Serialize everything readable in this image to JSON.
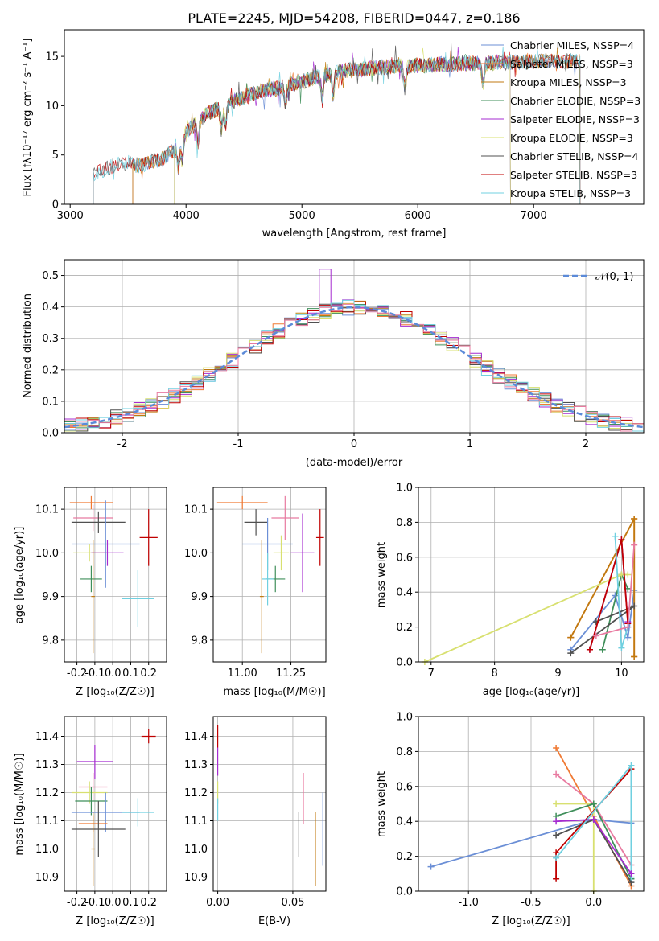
{
  "figure_title": "PLATE=2245, MJD=54208, FIBERID=0447, z=0.186",
  "colors": {
    "chabrier_miles": "#6b8fd6",
    "salpeter_miles": "#f07a34",
    "kroupa_miles": "#c07a10",
    "chabrier_elodie": "#3f8f5a",
    "salpeter_elodie": "#a52bd0",
    "kroupa_elodie": "#d8e070",
    "chabrier_stelib": "#505050",
    "salpeter_stelib": "#c00000",
    "kroupa_stelib": "#70d0e0",
    "extra_pink": "#e87aa0",
    "gaussian": "#5b8ad8",
    "grid": "#b0b0b0"
  },
  "chart_data": [
    {
      "id": "spectrum",
      "type": "line",
      "xlabel": "wavelength [Angstrom, rest frame]",
      "ylabel": "Flux [fλ10⁻¹⁷ erg cm⁻² s⁻¹ A⁻¹]",
      "xlim": [
        2950,
        7950
      ],
      "ylim": [
        0,
        17.7
      ],
      "xticks": [
        3000,
        4000,
        5000,
        6000,
        7000
      ],
      "yticks": [
        0,
        5,
        10,
        15
      ],
      "grid": false,
      "legend_position": "top-right",
      "series": [
        {
          "name": "Chabrier MILES, NSSP=4",
          "color": "#6b8fd6",
          "x_range": [
            3540,
            7400
          ]
        },
        {
          "name": "Salpeter MILES, NSSP=3",
          "color": "#f07a34",
          "x_range": [
            3540,
            7400
          ]
        },
        {
          "name": "Kroupa MILES, NSSP=3",
          "color": "#c07a10",
          "x_range": [
            3540,
            7400
          ]
        },
        {
          "name": "Chabrier ELODIE, NSSP=3",
          "color": "#3f8f5a",
          "x_range": [
            3900,
            6800
          ]
        },
        {
          "name": "Salpeter ELODIE, NSSP=3",
          "color": "#a52bd0",
          "x_range": [
            3900,
            6800
          ]
        },
        {
          "name": "Kroupa ELODIE, NSSP=3",
          "color": "#d8e070",
          "x_range": [
            3900,
            6800
          ]
        },
        {
          "name": "Chabrier STELIB, NSSP=4",
          "color": "#505050",
          "x_range": [
            3200,
            7400
          ]
        },
        {
          "name": "Salpeter STELIB, NSSP=3",
          "color": "#c00000",
          "x_range": [
            3200,
            7400
          ]
        },
        {
          "name": "Kroupa STELIB, NSSP=3",
          "color": "#70d0e0",
          "x_range": [
            3200,
            7400
          ]
        }
      ],
      "continuum": {
        "x": [
          3200,
          3300,
          3400,
          3500,
          3600,
          3700,
          3800,
          3900,
          3950,
          4000,
          4100,
          4200,
          4300,
          4400,
          4500,
          4600,
          4700,
          4800,
          4900,
          5000,
          5100,
          5200,
          5300,
          5400,
          5500,
          5600,
          5700,
          5800,
          5900,
          6000,
          6100,
          6200,
          6300,
          6400,
          6500,
          6600,
          6700,
          6800,
          6900,
          7000,
          7100,
          7200,
          7300,
          7400
        ],
        "y": [
          3.0,
          3.6,
          4.0,
          4.2,
          3.9,
          4.3,
          4.6,
          5.5,
          6.2,
          7.3,
          8.4,
          9.3,
          9.8,
          10.4,
          10.9,
          11.3,
          11.6,
          11.8,
          12.1,
          12.4,
          12.8,
          13.1,
          13.4,
          13.6,
          13.7,
          13.8,
          13.9,
          14.0,
          14.0,
          14.1,
          14.1,
          14.2,
          14.2,
          14.3,
          14.3,
          14.3,
          14.4,
          14.4,
          14.4,
          14.5,
          14.5,
          14.5,
          14.5,
          14.5
        ]
      }
    },
    {
      "id": "residuals",
      "type": "histogram",
      "xlabel": "(data-model)/error",
      "ylabel": "Normed distribution",
      "xlim": [
        -2.5,
        2.5
      ],
      "ylim": [
        0,
        0.55
      ],
      "xticks": [
        -2,
        -1,
        0,
        1,
        2
      ],
      "yticks": [
        0.0,
        0.1,
        0.2,
        0.3,
        0.4,
        0.5
      ],
      "grid": true,
      "legend_position": "top-right",
      "gaussian_label": "𝒩(0, 1)",
      "bin_width": 0.1
    },
    {
      "id": "age_vs_Z",
      "type": "errorbar",
      "xlabel": "Z [log₁₀(Z/Z☉)]",
      "ylabel": "age  [log₁₀(age/yr)]",
      "xlim": [
        -0.27,
        0.3
      ],
      "ylim": [
        9.75,
        10.15
      ],
      "xticks": [
        -0.2,
        -0.1,
        0.0,
        0.1,
        0.2
      ],
      "yticks": [
        9.8,
        9.9,
        10.0,
        10.1
      ],
      "grid": true,
      "points": [
        {
          "color": "#f07a34",
          "x": -0.12,
          "xerr": 0.12,
          "y": 10.115,
          "yerr": 0.015
        },
        {
          "color": "#e87aa0",
          "x": -0.11,
          "xerr": 0.11,
          "y": 10.08,
          "yerr": 0.03
        },
        {
          "color": "#505050",
          "x": -0.08,
          "xerr": 0.15,
          "y": 10.07,
          "yerr": 0.025
        },
        {
          "color": "#6b8fd6",
          "x": -0.04,
          "xerr": 0.19,
          "y": 10.02,
          "yerr": 0.1
        },
        {
          "color": "#d8e070",
          "x": -0.13,
          "xerr": 0.09,
          "y": 10.0,
          "yerr": 0.02
        },
        {
          "color": "#a52bd0",
          "x": -0.03,
          "xerr": 0.09,
          "y": 10.0,
          "yerr": 0.03
        },
        {
          "color": "#c00000",
          "x": 0.2,
          "xerr": 0.05,
          "y": 10.035,
          "yerr": 0.065
        },
        {
          "color": "#3f8f5a",
          "x": -0.12,
          "xerr": 0.06,
          "y": 9.94,
          "yerr": 0.03
        },
        {
          "color": "#70d0e0",
          "x": 0.14,
          "xerr": 0.09,
          "y": 9.895,
          "yerr": 0.065
        },
        {
          "color": "#c07a10",
          "x": -0.11,
          "xerr": 0.01,
          "y": 9.9,
          "yerr": 0.13
        }
      ]
    },
    {
      "id": "age_vs_mass",
      "type": "errorbar",
      "xlabel": "mass [log₁₀(M/M☉)]",
      "ylabel": "",
      "xlim": [
        10.85,
        11.43
      ],
      "ylim": [
        9.75,
        10.15
      ],
      "xticks": [
        11.0,
        11.25
      ],
      "yticks": [
        9.8,
        9.9,
        10.0,
        10.1
      ],
      "grid": true,
      "points": [
        {
          "color": "#f07a34",
          "x": 11.0,
          "xerr": 0.13,
          "y": 10.115,
          "yerr": 0.015
        },
        {
          "color": "#e87aa0",
          "x": 11.22,
          "xerr": 0.07,
          "y": 10.08,
          "yerr": 0.05
        },
        {
          "color": "#505050",
          "x": 11.07,
          "xerr": 0.06,
          "y": 10.07,
          "yerr": 0.03
        },
        {
          "color": "#6b8fd6",
          "x": 11.13,
          "xerr": 0.13,
          "y": 10.02,
          "yerr": 0.06
        },
        {
          "color": "#d8e070",
          "x": 11.2,
          "xerr": 0.04,
          "y": 10.0,
          "yerr": 0.04
        },
        {
          "color": "#a52bd0",
          "x": 11.31,
          "xerr": 0.06,
          "y": 10.0,
          "yerr": 0.09
        },
        {
          "color": "#c00000",
          "x": 11.4,
          "xerr": 0.02,
          "y": 10.035,
          "yerr": 0.065
        },
        {
          "color": "#3f8f5a",
          "x": 11.17,
          "xerr": 0.05,
          "y": 9.94,
          "yerr": 0.03
        },
        {
          "color": "#70d0e0",
          "x": 11.13,
          "xerr": 0.03,
          "y": 9.94,
          "yerr": 0.06
        },
        {
          "color": "#c07a10",
          "x": 11.1,
          "xerr": 0.01,
          "y": 9.9,
          "yerr": 0.13
        }
      ]
    },
    {
      "id": "mass_vs_Z",
      "type": "errorbar",
      "xlabel": "Z [log₁₀(Z/Z☉)]",
      "ylabel": "mass [log₁₀(M/M☉)]",
      "xlim": [
        -0.27,
        0.3
      ],
      "ylim": [
        10.85,
        11.47
      ],
      "xticks": [
        -0.2,
        -0.1,
        0.0,
        0.1,
        0.2
      ],
      "yticks": [
        10.9,
        11.0,
        11.1,
        11.2,
        11.3,
        11.4
      ],
      "grid": true,
      "points": [
        {
          "color": "#c00000",
          "x": 0.2,
          "xerr": 0.04,
          "y": 11.4,
          "yerr": 0.025
        },
        {
          "color": "#a52bd0",
          "x": -0.1,
          "xerr": 0.1,
          "y": 11.31,
          "yerr": 0.06
        },
        {
          "color": "#e87aa0",
          "x": -0.11,
          "xerr": 0.08,
          "y": 11.22,
          "yerr": 0.05
        },
        {
          "color": "#d8e070",
          "x": -0.13,
          "xerr": 0.1,
          "y": 11.2,
          "yerr": 0.04
        },
        {
          "color": "#3f8f5a",
          "x": -0.12,
          "xerr": 0.09,
          "y": 11.17,
          "yerr": 0.05
        },
        {
          "color": "#6b8fd6",
          "x": -0.04,
          "xerr": 0.19,
          "y": 11.13,
          "yerr": 0.07
        },
        {
          "color": "#70d0e0",
          "x": 0.14,
          "xerr": 0.09,
          "y": 11.13,
          "yerr": 0.05
        },
        {
          "color": "#f07a34",
          "x": -0.11,
          "xerr": 0.08,
          "y": 11.09,
          "yerr": 0.03
        },
        {
          "color": "#505050",
          "x": -0.08,
          "xerr": 0.15,
          "y": 11.07,
          "yerr": 0.1
        },
        {
          "color": "#c07a10",
          "x": -0.11,
          "xerr": 0.01,
          "y": 11.0,
          "yerr": 0.13
        }
      ]
    },
    {
      "id": "mass_vs_ebv",
      "type": "errorbar",
      "xlabel": "E(B-V)",
      "ylabel": "",
      "xlim": [
        -0.003,
        0.072
      ],
      "ylim": [
        10.85,
        11.47
      ],
      "xticks": [
        0.0,
        0.05
      ],
      "yticks": [
        10.9,
        11.0,
        11.1,
        11.2,
        11.3,
        11.4
      ],
      "grid": true,
      "points": [
        {
          "color": "#c00000",
          "x": 0.0,
          "xerr": 0.0,
          "y": 11.4,
          "yerr": 0.04
        },
        {
          "color": "#a52bd0",
          "x": 0.0,
          "xerr": 0.0,
          "y": 11.31,
          "yerr": 0.05
        },
        {
          "color": "#d8e070",
          "x": 0.0,
          "xerr": 0.0,
          "y": 11.2,
          "yerr": 0.04
        },
        {
          "color": "#70d0e0",
          "x": 0.0,
          "xerr": 0.0,
          "y": 11.14,
          "yerr": 0.04
        },
        {
          "color": "#e87aa0",
          "x": 0.057,
          "xerr": 0.0,
          "y": 11.18,
          "yerr": 0.09
        },
        {
          "color": "#505050",
          "x": 0.054,
          "xerr": 0.0,
          "y": 11.05,
          "yerr": 0.08
        },
        {
          "color": "#c07a10",
          "x": 0.065,
          "xerr": 0.0,
          "y": 11.0,
          "yerr": 0.13
        },
        {
          "color": "#6b8fd6",
          "x": 0.07,
          "xerr": 0.0,
          "y": 11.07,
          "yerr": 0.13
        }
      ]
    },
    {
      "id": "weight_vs_age",
      "type": "line",
      "xlabel": "age  [log₁₀(age/yr)]",
      "ylabel": "mass weight",
      "xlim": [
        6.8,
        10.35
      ],
      "ylim": [
        0,
        1.0
      ],
      "xticks": [
        7,
        8,
        9,
        10
      ],
      "yticks": [
        0.0,
        0.2,
        0.4,
        0.6,
        0.8,
        1.0
      ],
      "grid": true,
      "series": [
        {
          "color": "#6b8fd6",
          "x": [
            9.2,
            9.9,
            10.1,
            10.2
          ],
          "y": [
            0.07,
            0.38,
            0.14,
            0.41
          ]
        },
        {
          "color": "#f07a34",
          "x": [
            9.2,
            10.2,
            10.2
          ],
          "y": [
            0.14,
            0.82,
            0.03
          ]
        },
        {
          "color": "#c07a10",
          "x": [
            9.2,
            10.2,
            10.2
          ],
          "y": [
            0.14,
            0.82,
            0.03
          ]
        },
        {
          "color": "#3f8f5a",
          "x": [
            9.7,
            10.0,
            10.1
          ],
          "y": [
            0.07,
            0.5,
            0.42
          ]
        },
        {
          "color": "#a52bd0",
          "x": [
            9.5,
            10.0,
            10.1
          ],
          "y": [
            0.07,
            0.7,
            0.23
          ]
        },
        {
          "color": "#d8e070",
          "x": [
            6.9,
            10.0,
            10.1
          ],
          "y": [
            0.0,
            0.5,
            0.5
          ]
        },
        {
          "color": "#505050",
          "x": [
            9.2,
            10.2,
            9.6
          ],
          "y": [
            0.05,
            0.32,
            0.23
          ]
        },
        {
          "color": "#c00000",
          "x": [
            9.5,
            10.0,
            10.1
          ],
          "y": [
            0.07,
            0.7,
            0.22
          ]
        },
        {
          "color": "#70d0e0",
          "x": [
            9.9,
            10.0,
            10.1
          ],
          "y": [
            0.72,
            0.08,
            0.2
          ]
        },
        {
          "color": "#e87aa0",
          "x": [
            9.6,
            10.1,
            10.2
          ],
          "y": [
            0.15,
            0.2,
            0.67
          ]
        }
      ]
    },
    {
      "id": "weight_vs_Z",
      "type": "line",
      "xlabel": "Z [log₁₀(Z/Z☉)]",
      "ylabel": "mass weight",
      "xlim": [
        -1.4,
        0.4
      ],
      "ylim": [
        0,
        1.0
      ],
      "xticks": [
        -1.0,
        -0.5,
        0.0
      ],
      "yticks": [
        0.0,
        0.2,
        0.4,
        0.6,
        0.8,
        1.0
      ],
      "grid": true,
      "series": [
        {
          "color": "#6b8fd6",
          "x": [
            -1.3,
            0.0,
            0.3
          ],
          "y": [
            0.14,
            0.41,
            0.39
          ]
        },
        {
          "color": "#f07a34",
          "x": [
            -0.3,
            0.0,
            0.3
          ],
          "y": [
            0.82,
            0.43,
            0.03
          ]
        },
        {
          "color": "#e87aa0",
          "x": [
            -0.3,
            0.0,
            0.3
          ],
          "y": [
            0.67,
            0.5,
            0.15
          ]
        },
        {
          "color": "#d8e070",
          "x": [
            -0.3,
            0.0,
            0.0
          ],
          "y": [
            0.5,
            0.5,
            0.0
          ]
        },
        {
          "color": "#3f8f5a",
          "x": [
            -0.3,
            0.0,
            0.3
          ],
          "y": [
            0.43,
            0.5,
            0.07
          ]
        },
        {
          "color": "#505050",
          "x": [
            -0.3,
            0.0,
            0.3
          ],
          "y": [
            0.32,
            0.41,
            0.05
          ]
        },
        {
          "color": "#c00000",
          "x": [
            -0.3,
            -0.3,
            0.3
          ],
          "y": [
            0.07,
            0.22,
            0.7
          ]
        },
        {
          "color": "#70d0e0",
          "x": [
            -0.3,
            0.3,
            0.3
          ],
          "y": [
            0.19,
            0.72,
            0.08
          ]
        },
        {
          "color": "#a52bd0",
          "x": [
            -0.3,
            0.0,
            0.3
          ],
          "y": [
            0.4,
            0.41,
            0.1
          ]
        }
      ]
    }
  ]
}
